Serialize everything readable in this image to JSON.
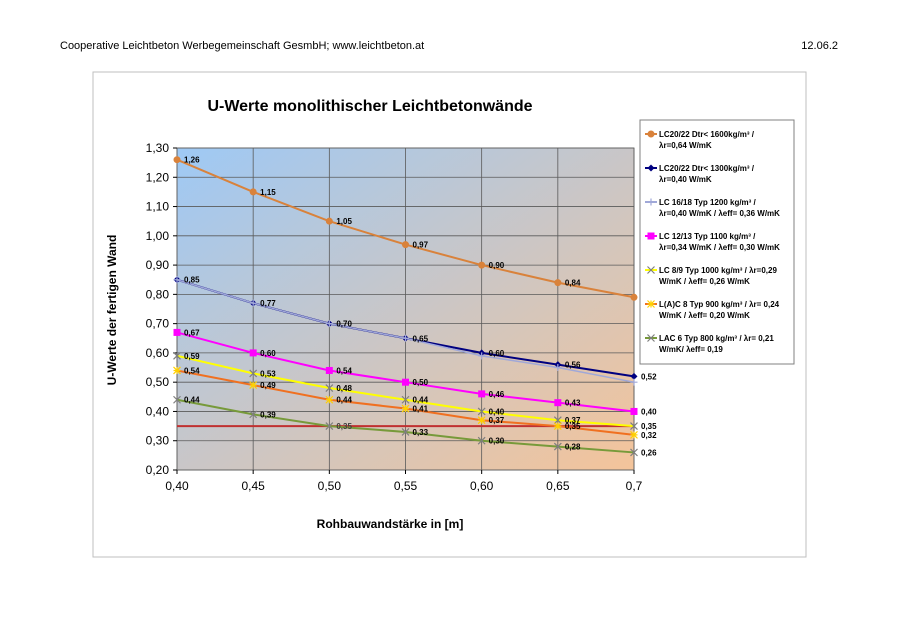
{
  "header": {
    "left": "Cooperative Leichtbeton Werbegemeinschaft GesmbH; www.leichtbeton.at",
    "right": "12.06.2"
  },
  "chart_data": {
    "type": "line",
    "title": "U-Werte monolithischer Leichtbetonwände",
    "xlabel": "Rohbauwandstärke in [m]",
    "ylabel": "U-Werte der fertigen Wand",
    "x": [
      0.4,
      0.45,
      0.5,
      0.55,
      0.6,
      0.65,
      0.7
    ],
    "x_tick_labels": [
      "0,40",
      "0,45",
      "0,50",
      "0,55",
      "0,60",
      "0,65",
      "0,7"
    ],
    "ylim": [
      0.2,
      1.3
    ],
    "y_ticks": [
      0.2,
      0.3,
      0.4,
      0.5,
      0.6,
      0.7,
      0.8,
      0.9,
      1.0,
      1.1,
      1.2,
      1.3
    ],
    "y_tick_labels": [
      "0,20",
      "0,30",
      "0,40",
      "0,50",
      "0,60",
      "0,70",
      "0,80",
      "0,90",
      "1,00",
      "1,10",
      "1,20",
      "1,30"
    ],
    "grid": true,
    "legend_position": "right",
    "background_gradient": [
      "#9ec9f5",
      "#f4c49a"
    ],
    "series": [
      {
        "name": "LC20/22 Dtr< 1600kg/m³ / λr=0,64 W/mK",
        "legend_lines": [
          "LC20/22 Dtr< 1600kg/m³ /",
          "λr=0,64 W/mK"
        ],
        "color": "#d9823b",
        "marker": "circle",
        "values": [
          1.26,
          1.15,
          1.05,
          0.97,
          0.9,
          0.84,
          0.79
        ],
        "labels": [
          "1,26",
          "1,15",
          "1,05",
          "0,97",
          "0,90",
          "0,84",
          ""
        ]
      },
      {
        "name": "LC20/22 Dtr< 1300kg/m³ / λr=0,40 W/mK",
        "legend_lines": [
          "LC20/22 Dtr< 1300kg/m³ /",
          "λr=0,40 W/mK"
        ],
        "color": "#000080",
        "marker": "diamond",
        "values": [
          0.85,
          0.77,
          0.7,
          0.65,
          0.6,
          0.56,
          0.52
        ],
        "labels": [
          "0,85",
          "0,77",
          "0,70",
          "0,65",
          "0,60",
          "0,56",
          "0,52"
        ]
      },
      {
        "name": "LC 16/18 Typ 1200 kg/m³ / λr=0,40 W/mK / λeff= 0,36 W/mK",
        "legend_lines": [
          "LC 16/18  Typ 1200 kg/m³ /",
          "λr=0,40 W/mK / λeff= 0,36 W/mK"
        ],
        "color": "#a0a8d8",
        "marker": "plus",
        "values": [
          0.85,
          0.77,
          0.7,
          0.65,
          0.59,
          0.55,
          0.5
        ],
        "labels": [
          "",
          "",
          "",
          "",
          "",
          "",
          ""
        ]
      },
      {
        "name": "LC 12/13 Typ 1100 kg/m³ / λr=0,34 W/mK / λeff= 0,30 W/mK",
        "legend_lines": [
          "LC 12/13  Typ 1100 kg/m³ /",
          "λr=0,34 W/mK / λeff= 0,30 W/mK"
        ],
        "color": "#ff00ff",
        "marker": "square",
        "values": [
          0.67,
          0.6,
          0.54,
          0.5,
          0.46,
          0.43,
          0.4
        ],
        "labels": [
          "0,67",
          "0,60",
          "0,54",
          "0,50",
          "0,46",
          "0,43",
          "0,40"
        ]
      },
      {
        "name": "LC 8/9 Typ 1000 kg/m³ / λr=0,29 W/mK / λeff= 0,26 W/mK",
        "legend_lines": [
          "LC 8/9  Typ 1000 kg/m³ / λr=0,29",
          "W/mK / λeff= 0,26 W/mK"
        ],
        "color": "#ffff00",
        "marker": "x",
        "values": [
          0.59,
          0.53,
          0.48,
          0.44,
          0.4,
          0.37,
          0.35
        ],
        "labels": [
          "0,59",
          "0,53",
          "0,48",
          "0,44",
          "0,40",
          "0,37",
          "0,35"
        ]
      },
      {
        "name": "L(A)C 8 Typ 900 kg/m³ / λr= 0,24 W/mK / λeff= 0,20 W/mK",
        "legend_lines": [
          "L(A)C 8  Typ 900 kg/m³ / λr= 0,24",
          "W/mK / λeff= 0,20 W/mK"
        ],
        "color": "#f07020",
        "marker": "star",
        "values": [
          0.54,
          0.49,
          0.44,
          0.41,
          0.37,
          0.35,
          0.32
        ],
        "labels": [
          "0,54",
          "0,49",
          "0,44",
          "0,41",
          "0,37",
          "0,35",
          "0,32"
        ]
      },
      {
        "name": "LAC 6 Typ 800 kg/m³ / λr= 0,21 W/mK/ λeff= 0,19",
        "legend_lines": [
          "LAC 6  Typ 800 kg/m³ / λr= 0,21",
          "W/mK/ λeff= 0,19"
        ],
        "color": "#779a3a",
        "marker": "x",
        "values": [
          0.44,
          0.39,
          0.35,
          0.33,
          0.3,
          0.28,
          0.26
        ],
        "labels": [
          "0,44",
          "0,39",
          "",
          "0,33",
          "0,30",
          "0,28",
          "0,26"
        ]
      }
    ],
    "reference_line": {
      "value": 0.35,
      "color": "#c03030",
      "label_at_0_50": "0,35"
    }
  }
}
